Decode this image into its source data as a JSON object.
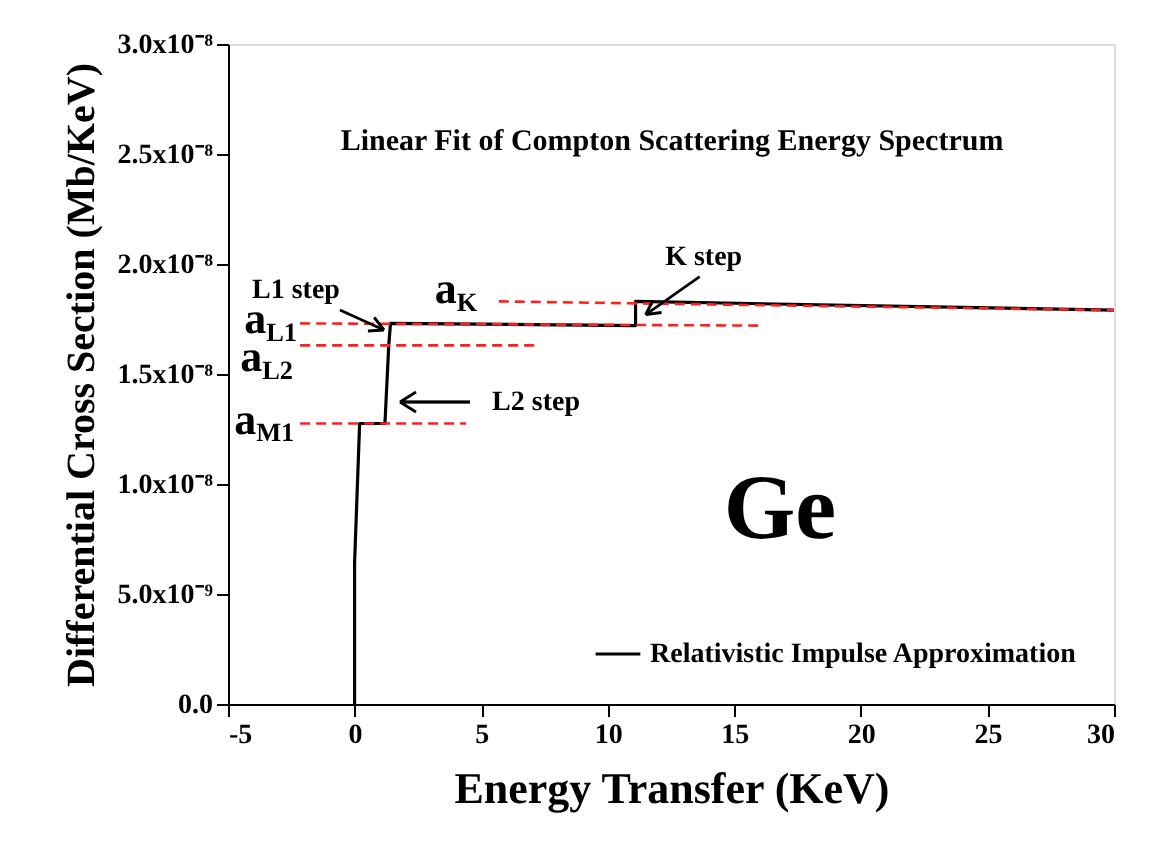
{
  "chart_data": {
    "type": "line",
    "xlabel": "Energy Transfer (KeV)",
    "ylabel": "Differential Cross Section (Mb/KeV)",
    "xlim": [
      -5,
      30
    ],
    "xticks": [
      -5,
      0,
      5,
      10,
      15,
      20,
      25,
      30
    ],
    "ylim": [
      0,
      3e-08
    ],
    "yticks": [
      {
        "value": 0,
        "label": "0.0"
      },
      {
        "value": 5e-09,
        "label": "5.0x10⁻⁹"
      },
      {
        "value": 1e-08,
        "label": "1.0x10⁻⁸"
      },
      {
        "value": 1.5e-08,
        "label": "1.5x10⁻⁸"
      },
      {
        "value": 2e-08,
        "label": "2.0x10⁻⁸"
      },
      {
        "value": 2.5e-08,
        "label": "2.5x10⁻⁸"
      },
      {
        "value": 3e-08,
        "label": "3.0x10⁻⁸"
      }
    ],
    "legend": "bottom right",
    "series": [
      {
        "name": "Relativistic Impulse Approximation",
        "color": "#000000",
        "line_style": "solid",
        "x": [
          0,
          0,
          0.2,
          1.2,
          1.35,
          1.42,
          11.1,
          11.1,
          30
        ],
        "values": [
          0,
          6.4e-09,
          1.275e-08,
          1.275e-08,
          1.63e-08,
          1.73e-08,
          1.72e-08,
          1.83e-08,
          1.79e-08
        ]
      },
      {
        "color": "#ff2020",
        "line_style": "dashed",
        "x": [
          -2.15,
          16.0
        ],
        "values": [
          1.73e-08,
          1.72e-08
        ]
      },
      {
        "color": "#ff2020",
        "line_style": "dashed",
        "x": [
          -2.15,
          7.2
        ],
        "values": [
          1.63e-08,
          1.63e-08
        ]
      },
      {
        "color": "#ff2020",
        "line_style": "dashed",
        "x": [
          -2.15,
          4.4
        ],
        "values": [
          1.275e-08,
          1.275e-08
        ]
      },
      {
        "color": "#ff2020",
        "line_style": "dashed",
        "x": [
          5.7,
          30
        ],
        "values": [
          1.83e-08,
          1.79e-08
        ]
      }
    ],
    "annotations": [
      "Linear Fit of Compton Scattering Energy Spectrum",
      {
        "text": "L1 step",
        "x": 1.16,
        "y": 1.7e-08
      },
      "L2 step",
      {
        "text": "K step",
        "x": 11.5,
        "y": 1.77e-08
      },
      {
        "text": "a$_{L1}$",
        "x": -2.15,
        "y": 1.73e-08
      },
      {
        "text": "a$_{L2}$",
        "x": -2.15,
        "y": 1.63e-08
      },
      {
        "text": "a$_{M1}$",
        "x": -2.15,
        "y": 1.275e-08
      },
      {
        "text": "a$_{K}$",
        "x": 5.7,
        "y": 1.83e-08
      },
      "Ge"
    ]
  }
}
